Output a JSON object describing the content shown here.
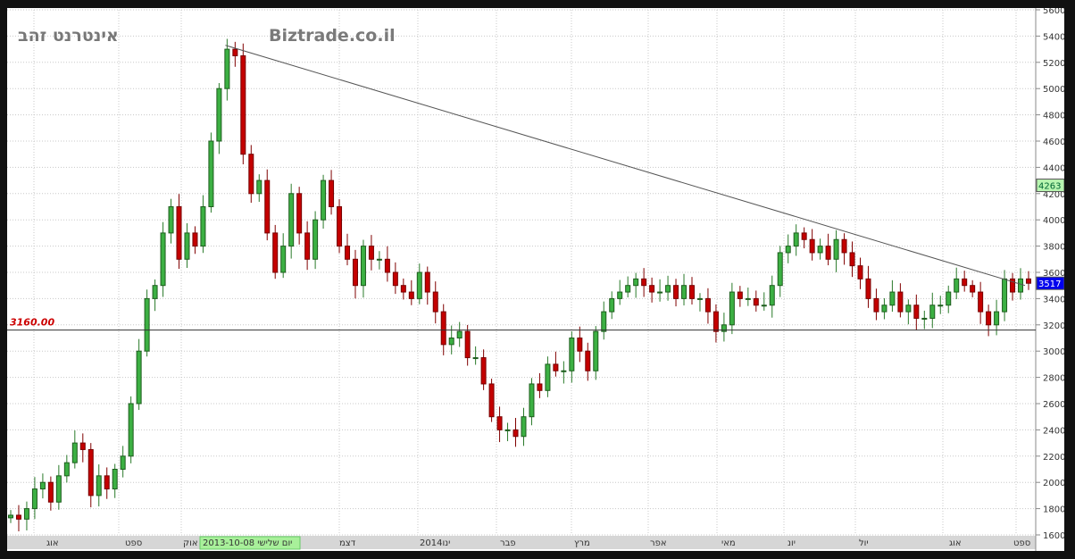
{
  "header": {
    "instrument": "אינטרנט זהב",
    "site": "Biztrade.co.il"
  },
  "chart_data": {
    "type": "candlestick",
    "ylim": [
      1600,
      5600
    ],
    "y_ticks": [
      1600,
      1800,
      2000,
      2200,
      2400,
      2600,
      2800,
      3000,
      3200,
      3400,
      3600,
      3800,
      4000,
      4200,
      4400,
      4600,
      4800,
      5000,
      5200,
      5400,
      5600
    ],
    "x_tick_labels": [
      "אוג",
      "ספט",
      "אוק",
      "דצמ",
      "2014ינו",
      "פבר",
      "מרץ",
      "אפר",
      "מאי",
      "יונ",
      "יול",
      "אוג",
      "ספט"
    ],
    "cursor_date_label": "2013-10-08 יום שלישי",
    "closes": [
      1750,
      1720,
      1800,
      1950,
      2000,
      1850,
      2050,
      2150,
      2300,
      2250,
      1900,
      2050,
      1950,
      2100,
      2200,
      2600,
      3000,
      3400,
      3500,
      3900,
      4100,
      3700,
      3900,
      3800,
      4100,
      4600,
      5000,
      5300,
      5250,
      4500,
      4200,
      4300,
      3900,
      3600,
      3800,
      4200,
      3900,
      3700,
      4000,
      4300,
      4100,
      3800,
      3700,
      3500,
      3800,
      3700,
      3700,
      3600,
      3500,
      3450,
      3400,
      3600,
      3450,
      3300,
      3050,
      3100,
      3150,
      2950,
      2950,
      2750,
      2500,
      2400,
      2400,
      2350,
      2500,
      2750,
      2700,
      2900,
      2850,
      2850,
      3100,
      3000,
      2850,
      3150,
      3300,
      3400,
      3450,
      3500,
      3550,
      3500,
      3450,
      3450,
      3500,
      3400,
      3500,
      3400,
      3400,
      3300,
      3150,
      3200,
      3450,
      3400,
      3400,
      3350,
      3350,
      3500,
      3750,
      3800,
      3900,
      3850,
      3750,
      3800,
      3700,
      3850,
      3750,
      3650,
      3550,
      3400,
      3300,
      3350,
      3450,
      3300,
      3350,
      3250,
      3250,
      3350,
      3350,
      3450,
      3550,
      3500,
      3450,
      3300,
      3200,
      3300,
      3550,
      3450,
      3550,
      3517
    ],
    "horizontal_line": {
      "value": 3160,
      "label": "3160.00"
    },
    "trendline": {
      "from": 5330,
      "to": 3500
    },
    "price_markers": [
      {
        "label": "4263",
        "value": 4263,
        "color": "#b8f5b0"
      },
      {
        "label": "3517",
        "value": 3517,
        "color": "#0000ee"
      }
    ],
    "colors": {
      "up": "#3cb043",
      "down": "#c40000",
      "line": "#555555",
      "hline": "#333333",
      "hline_label": "#cc0000"
    },
    "grid": true
  }
}
